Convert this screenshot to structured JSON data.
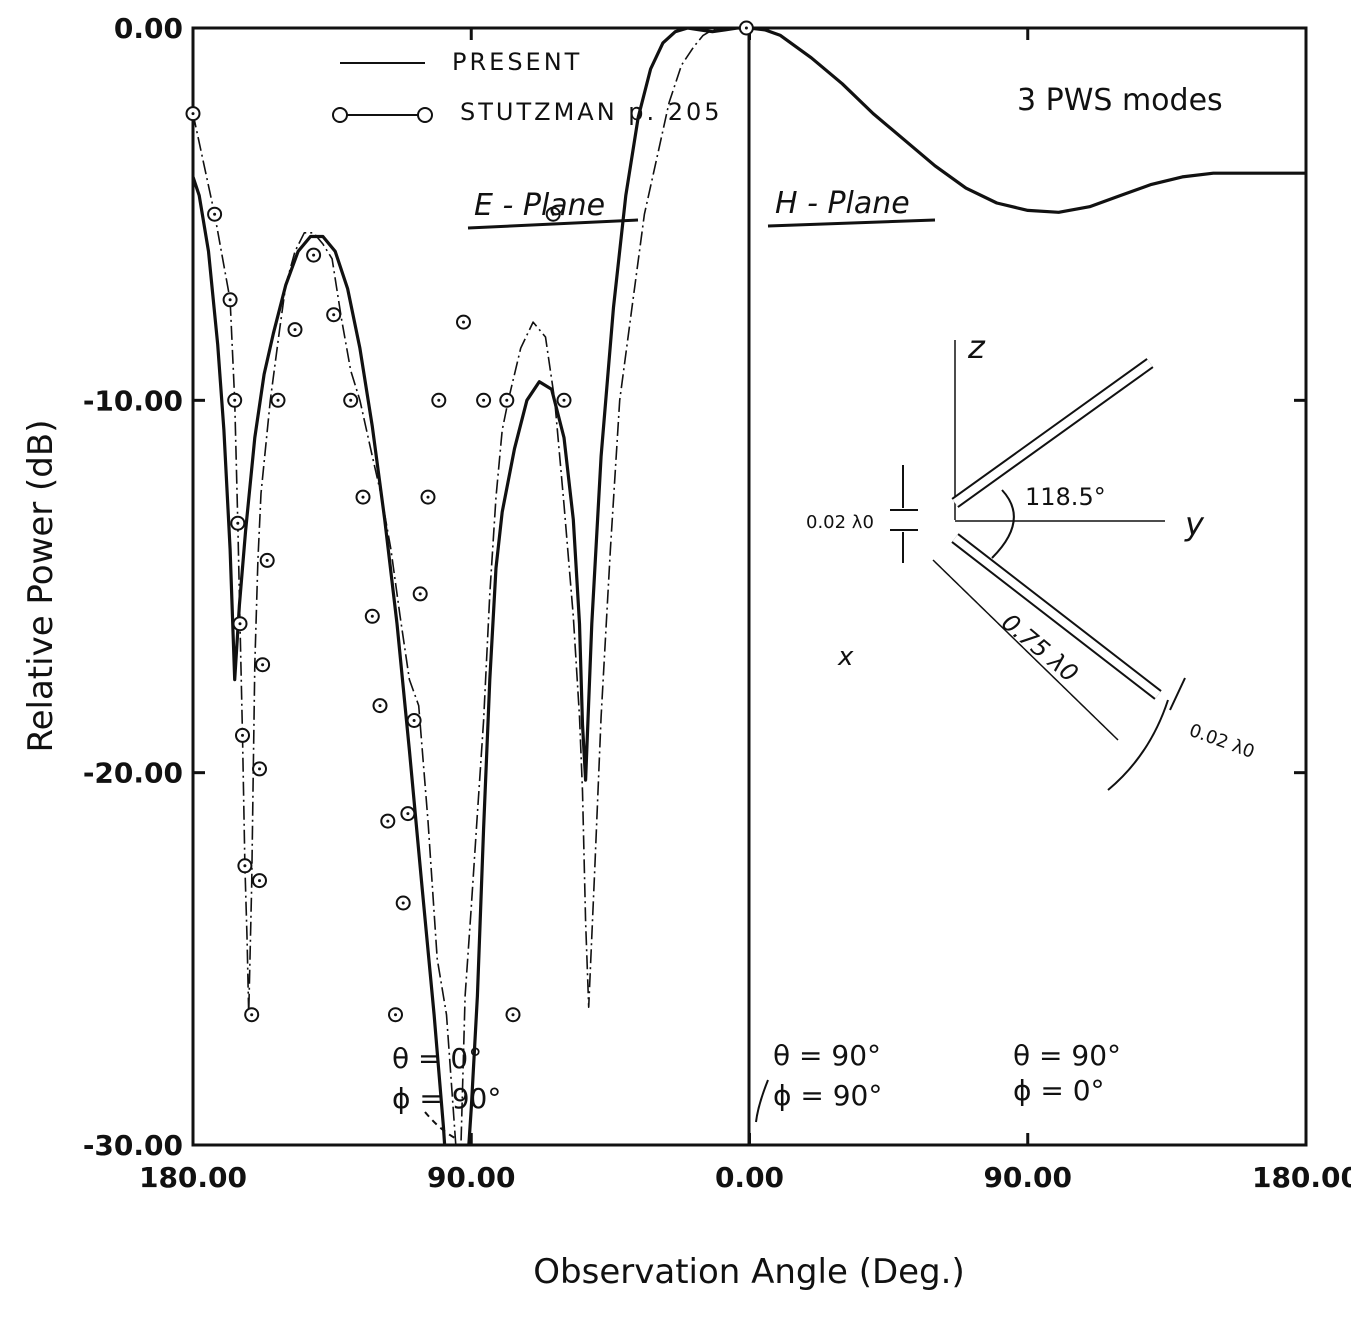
{
  "chart_data": {
    "type": "line",
    "xlabel": "Observation Angle (Deg.)",
    "ylabel": "Relative Power (dB)",
    "xlim": [
      -180,
      180
    ],
    "ylim": [
      -30,
      0
    ],
    "x_ticks": [
      -180,
      -90,
      0,
      90,
      180
    ],
    "x_tick_labels": [
      "180.00",
      "90.00",
      "0.00",
      "90.00",
      "180.00"
    ],
    "y_ticks": [
      0,
      -10,
      -20,
      -30
    ],
    "y_tick_labels": [
      "0.00",
      "-10.00",
      "-20.00",
      "-30.00"
    ],
    "grid": false,
    "legend_position": "top-left",
    "series": [
      {
        "name": "PRESENT",
        "style": "solid",
        "x": [
          -180,
          -178,
          -175,
          -172,
          -170,
          -168,
          -166.5,
          -165,
          -163,
          -160,
          -157,
          -154,
          -150,
          -146,
          -142,
          -138,
          -134,
          -130,
          -126,
          -122,
          -118,
          -114,
          -110,
          -106,
          -102,
          -99,
          -97,
          -95,
          -94,
          -93,
          -92,
          -90,
          -88,
          -86,
          -84,
          -82,
          -80,
          -76,
          -72,
          -68,
          -64,
          -60,
          -57,
          -55,
          -54,
          -53,
          -51,
          -48,
          -44,
          -40,
          -36,
          -32,
          -28,
          -24,
          -20,
          -16,
          -12,
          -8,
          -4,
          -2,
          0,
          5,
          10,
          20,
          30,
          40,
          50,
          60,
          70,
          80,
          90,
          100,
          110,
          120,
          130,
          140,
          150,
          160,
          170,
          180
        ],
        "y": [
          -4.0,
          -4.5,
          -6.0,
          -8.5,
          -10.8,
          -14.0,
          -17.5,
          -15.5,
          -13.5,
          -11.0,
          -9.3,
          -8.2,
          -6.9,
          -6.0,
          -5.6,
          -5.6,
          -6.0,
          -7.0,
          -8.6,
          -10.7,
          -13.2,
          -16.0,
          -19.4,
          -23.0,
          -26.5,
          -29.5,
          -32.0,
          -33.0,
          -35.0,
          -33.0,
          -31.5,
          -29.0,
          -26.0,
          -21.5,
          -17.5,
          -14.5,
          -13.0,
          -11.3,
          -10.0,
          -9.5,
          -9.7,
          -11.0,
          -13.2,
          -16.0,
          -18.7,
          -20.2,
          -16.0,
          -11.5,
          -7.5,
          -4.5,
          -2.4,
          -1.1,
          -0.4,
          -0.1,
          0.0,
          -0.05,
          -0.1,
          -0.05,
          0.0,
          0.0,
          0.0,
          -0.05,
          -0.2,
          -0.8,
          -1.5,
          -2.3,
          -3.0,
          -3.7,
          -4.3,
          -4.7,
          -4.9,
          -4.95,
          -4.8,
          -4.5,
          -4.2,
          -4.0,
          -3.9,
          -3.9,
          -3.9,
          -3.9
        ]
      },
      {
        "name": "STUTZMAN p. 205",
        "style": "dashed-with-circles",
        "x": [
          -180,
          -173,
          -168,
          -166.5,
          -165.5,
          -164.8,
          -164,
          -163.2,
          -162.5,
          -162.5,
          -162,
          -161,
          -160.5,
          -160,
          -159,
          -158,
          -155,
          -152,
          -150,
          -147,
          -144,
          -141,
          -138,
          -135,
          -132,
          -129,
          -126,
          -122,
          -119,
          -116,
          -113,
          -110,
          -107,
          -104,
          -101,
          -98,
          -95,
          -94,
          -93,
          -92,
          -90,
          -88,
          -86,
          -84,
          -82,
          -80,
          -78,
          -74,
          -70,
          -66,
          -63,
          -60,
          -57,
          -55,
          -54,
          -53,
          -52,
          -50,
          -48,
          -45,
          -42,
          -38,
          -34,
          -30,
          -26,
          -22,
          -18,
          -15,
          -12,
          -8,
          -4,
          -1,
          0
        ],
        "y": [
          -2.3,
          -5.0,
          -7.3,
          -10.0,
          -13.3,
          -16.0,
          -19.0,
          -22.5,
          -24.5,
          -24.5,
          -26.5,
          -23.0,
          -19.9,
          -17.1,
          -14.3,
          -12.5,
          -10.0,
          -8.1,
          -6.9,
          -6.0,
          -5.5,
          -5.5,
          -5.8,
          -6.2,
          -7.8,
          -9.2,
          -10.0,
          -11.5,
          -12.6,
          -14.0,
          -15.8,
          -17.5,
          -18.2,
          -21.3,
          -25.0,
          -26.5,
          -30.0,
          -32.0,
          -29.0,
          -26.0,
          -23.6,
          -21.1,
          -18.6,
          -15.2,
          -12.6,
          -10.8,
          -10.0,
          -8.6,
          -7.9,
          -8.3,
          -10.0,
          -12.8,
          -15.8,
          -18.5,
          -20.5,
          -24.0,
          -26.3,
          -22.5,
          -18.5,
          -14.0,
          -10.0,
          -7.5,
          -5.0,
          -3.5,
          -2.0,
          -1.0,
          -0.5,
          -0.2,
          -0.05,
          0.0,
          0.0,
          0.0,
          0.0
        ],
        "markers": [
          [
            -180,
            -2.3
          ],
          [
            -173,
            -5.0
          ],
          [
            -168,
            -7.3
          ],
          [
            -166.5,
            -10.0
          ],
          [
            -165.5,
            -13.3
          ],
          [
            -164.8,
            -16.0
          ],
          [
            -164,
            -19.0
          ],
          [
            -163.2,
            -22.5
          ],
          [
            -161,
            -26.5
          ],
          [
            -158.5,
            -22.9
          ],
          [
            -158.5,
            -19.9
          ],
          [
            -157.5,
            -17.1
          ],
          [
            -156,
            -14.3
          ],
          [
            -152.5,
            -10.0
          ],
          [
            -147,
            -8.1
          ],
          [
            -141,
            -6.1
          ],
          [
            -134.5,
            -7.7
          ],
          [
            -129,
            -10.0
          ],
          [
            -125,
            -12.6
          ],
          [
            -122,
            -15.8
          ],
          [
            -119.5,
            -18.2
          ],
          [
            -117,
            -21.3
          ],
          [
            -114.5,
            -26.5
          ],
          [
            -112,
            -23.5
          ],
          [
            -110.5,
            -21.1
          ],
          [
            -108.5,
            -18.6
          ],
          [
            -106.5,
            -15.2
          ],
          [
            -104,
            -12.6
          ],
          [
            -100.5,
            -10.0
          ],
          [
            -92.5,
            -7.9
          ],
          [
            -86,
            -10.0
          ],
          [
            -78.5,
            -10.0
          ],
          [
            -76.5,
            -26.5
          ],
          [
            -63.5,
            -5.0
          ],
          [
            -60,
            -10.0
          ],
          [
            -1,
            0.0
          ]
        ]
      }
    ],
    "annotations": [
      "E - Plane",
      "H - Plane",
      "3 PWS modes",
      "θ = 0°",
      "ϕ = 90°",
      "θ = 90°",
      "ϕ = 90°",
      "θ = 90°",
      "ϕ = 0°",
      "z",
      "y",
      "x",
      "118.5°",
      "0.02 λ0",
      "0.75 λ0",
      "0.02 λ0"
    ]
  }
}
